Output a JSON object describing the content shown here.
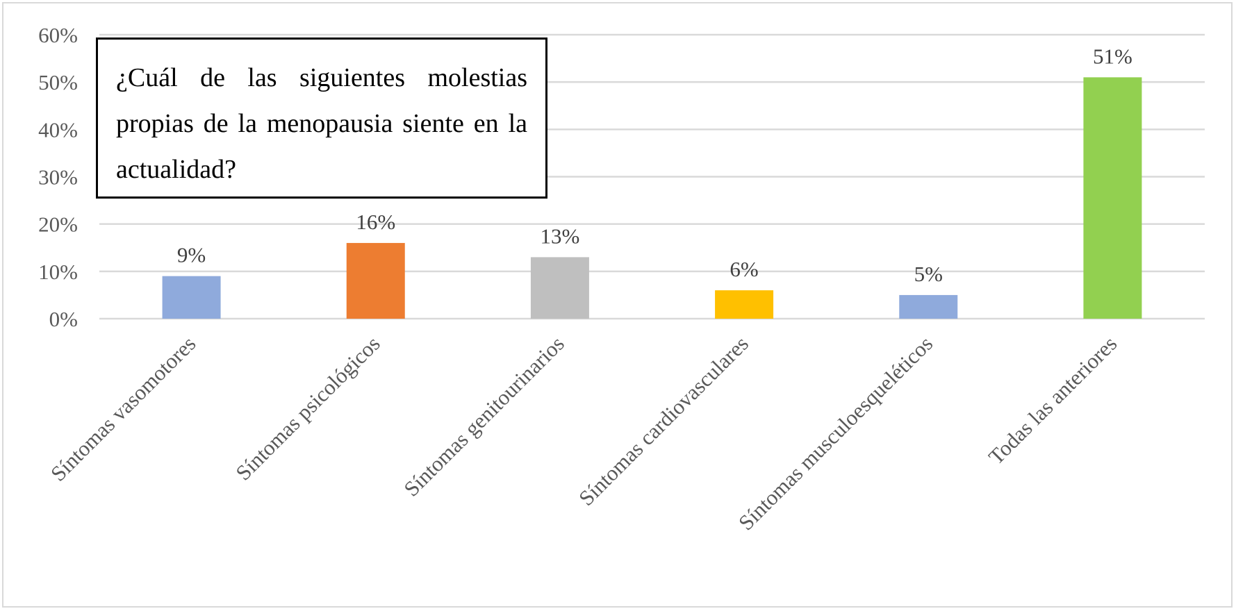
{
  "chart_data": {
    "type": "bar",
    "title": "¿Cuál de las siguientes molestias propias de la menopausia siente en la actualidad?",
    "categories": [
      "Síntomas vasomotores",
      "Síntomas psicológicos",
      "Síntomas genitourinarios",
      "Síntomas cardiovasculares",
      "Síntomas musculoesqueléticos",
      "Todas las anteriores"
    ],
    "values": [
      9,
      16,
      13,
      6,
      5,
      51
    ],
    "data_labels": [
      "9%",
      "16%",
      "13%",
      "6%",
      "5%",
      "51%"
    ],
    "colors": [
      "#8faadc",
      "#ed7d31",
      "#bfbfbf",
      "#ffc000",
      "#8faadc",
      "#92d050"
    ],
    "y_ticks": [
      0,
      10,
      20,
      30,
      40,
      50,
      60
    ],
    "y_tick_labels": [
      "0%",
      "10%",
      "20%",
      "30%",
      "40%",
      "50%",
      "60%"
    ],
    "ylim": [
      0,
      60
    ],
    "xlabel": "",
    "ylabel": "",
    "grid": true,
    "legend": "none"
  }
}
